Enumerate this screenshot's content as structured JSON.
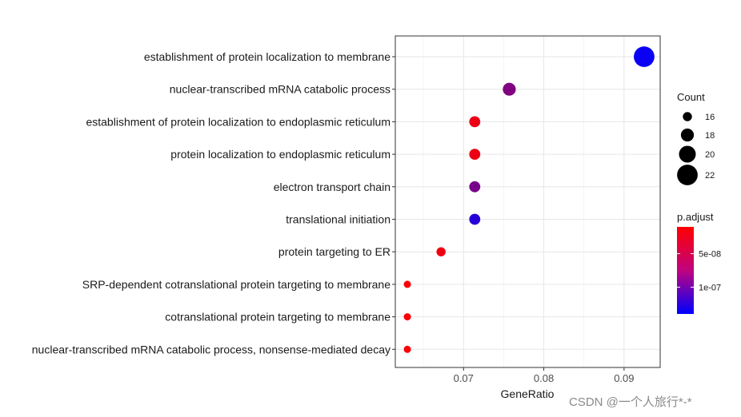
{
  "chart_data": {
    "type": "scatter",
    "subtype": "dot-plot",
    "xlabel": "GeneRatio",
    "ylabel": "",
    "xlim": [
      0.0615,
      0.0945
    ],
    "xticks": [
      0.07,
      0.08,
      0.09
    ],
    "xtick_labels": [
      "0.07",
      "0.08",
      "0.09"
    ],
    "grid": true,
    "points": [
      {
        "term": "establishment of protein localization to membrane",
        "gene_ratio": 0.0925,
        "count": 22,
        "p_adjust": 1.35e-07
      },
      {
        "term": "nuclear-transcribed mRNA catabolic process",
        "gene_ratio": 0.0757,
        "count": 18,
        "p_adjust": 7.5e-08
      },
      {
        "term": "establishment of protein localization to endoplasmic reticulum",
        "gene_ratio": 0.0714,
        "count": 17,
        "p_adjust": 2e-08
      },
      {
        "term": "protein localization to endoplasmic reticulum",
        "gene_ratio": 0.0714,
        "count": 17,
        "p_adjust": 2e-08
      },
      {
        "term": "electron transport chain",
        "gene_ratio": 0.0714,
        "count": 17,
        "p_adjust": 8e-08
      },
      {
        "term": "translational initiation",
        "gene_ratio": 0.0714,
        "count": 17,
        "p_adjust": 1.2e-07
      },
      {
        "term": "protein targeting to ER",
        "gene_ratio": 0.0672,
        "count": 16,
        "p_adjust": 1.8e-08
      },
      {
        "term": "SRP-dependent cotranslational protein targeting to membrane",
        "gene_ratio": 0.063,
        "count": 15,
        "p_adjust": 1.2e-08
      },
      {
        "term": "cotranslational protein targeting to membrane",
        "gene_ratio": 0.063,
        "count": 15,
        "p_adjust": 1.2e-08
      },
      {
        "term": "nuclear-transcribed mRNA catabolic process, nonsense-mediated decay",
        "gene_ratio": 0.063,
        "count": 15,
        "p_adjust": 1.2e-08
      }
    ],
    "legend_size": {
      "title": "Count",
      "entries": [
        {
          "label": "16",
          "value": 16
        },
        {
          "label": "18",
          "value": 18
        },
        {
          "label": "20",
          "value": 20
        },
        {
          "label": "22",
          "value": 22
        }
      ]
    },
    "legend_color": {
      "title": "p.adjust",
      "range": [
        1e-08,
        1.4e-07
      ],
      "low_color": "#ff0000",
      "high_color": "#0000ff",
      "ticks": [
        {
          "label": "5e-08",
          "value": 5e-08
        },
        {
          "label": "1e-07",
          "value": 1e-07
        }
      ]
    }
  },
  "watermark": "CSDN @一个人旅行*-*"
}
